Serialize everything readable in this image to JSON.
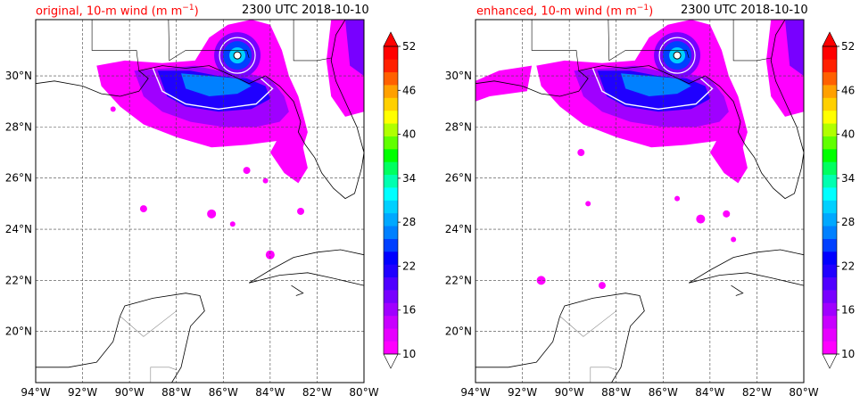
{
  "panels": [
    {
      "id": "original",
      "title_text": "original, 10-m wind (m m",
      "title_sup": "−1",
      "title_close": ")",
      "time_label": "2300 UTC 2018-10-10"
    },
    {
      "id": "enhanced",
      "title_text": "enhanced, 10-m wind (m m",
      "title_sup": "−1",
      "title_close": ")",
      "time_label": "2300 UTC 2018-10-10"
    }
  ],
  "map": {
    "lon_range": [
      -94,
      -80
    ],
    "lat_range": [
      18,
      32.2
    ],
    "lon_ticks": [
      "94°W",
      "92°W",
      "90°W",
      "88°W",
      "86°W",
      "84°W",
      "82°W",
      "80°W"
    ],
    "lat_ticks": [
      "20°N",
      "22°N",
      "24°N",
      "26°N",
      "28°N",
      "30°N"
    ],
    "lon_tick_values": [
      -94,
      -92,
      -90,
      -88,
      -86,
      -84,
      -82,
      -80
    ],
    "lat_tick_values": [
      20,
      22,
      24,
      26,
      28,
      30
    ],
    "gridlines": true
  },
  "colorbar": {
    "tick_labels": [
      "10",
      "16",
      "22",
      "28",
      "34",
      "40",
      "46",
      "52"
    ],
    "tick_values": [
      10,
      16,
      22,
      28,
      34,
      40,
      46,
      52
    ],
    "range": [
      10,
      52
    ],
    "extend": "both",
    "colors": [
      "#ff00ff",
      "#e600ff",
      "#c800ff",
      "#a000ff",
      "#7800ff",
      "#5000ff",
      "#2000ff",
      "#0000ff",
      "#0040ff",
      "#0080ff",
      "#00a8ff",
      "#00d0ff",
      "#00ffff",
      "#00ffb0",
      "#00ff60",
      "#00ff00",
      "#60ff00",
      "#b0ff00",
      "#ffff00",
      "#ffd000",
      "#ffa000",
      "#ff6000",
      "#ff2000",
      "#ff0000"
    ],
    "over_color": "#ff0000",
    "under_color": "#ffffff"
  }
}
